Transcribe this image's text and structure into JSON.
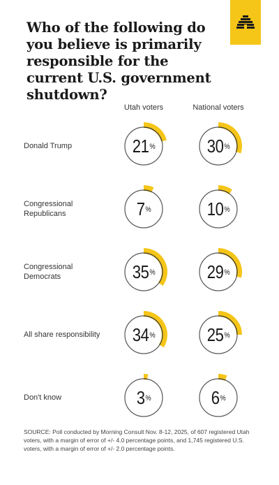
{
  "title": "Who of the following do you believe is primarily responsible for the current U.S. government shutdown?",
  "logo_icon": "beehive-icon",
  "colors": {
    "accent": "#f5c518",
    "ring": "#555555",
    "logo_bg": "#f5c518"
  },
  "chart_data": {
    "type": "pie",
    "title": "Who of the following do you believe is primarily responsible for the current U.S. government shutdown?",
    "columns": [
      "Utah voters",
      "National voters"
    ],
    "unit": "%",
    "rows": [
      {
        "label": "Donald Trump",
        "values": [
          21,
          30
        ]
      },
      {
        "label": "Congressional Republicans",
        "values": [
          7,
          10
        ]
      },
      {
        "label": "Congressional Democrats",
        "values": [
          35,
          29
        ]
      },
      {
        "label": "All share responsibility",
        "values": [
          34,
          25
        ]
      },
      {
        "label": "Don't know",
        "values": [
          3,
          6
        ]
      }
    ]
  },
  "source": "SOURCE: Poll conducted by Morning Consult Nov. 8-12, 2025, of 607 registered Utah voters, with a margin of error of +/- 4.0 percentage points, and 1,745 registered U.S. voters, with a margin of error of +/- 2.0 percentage points."
}
